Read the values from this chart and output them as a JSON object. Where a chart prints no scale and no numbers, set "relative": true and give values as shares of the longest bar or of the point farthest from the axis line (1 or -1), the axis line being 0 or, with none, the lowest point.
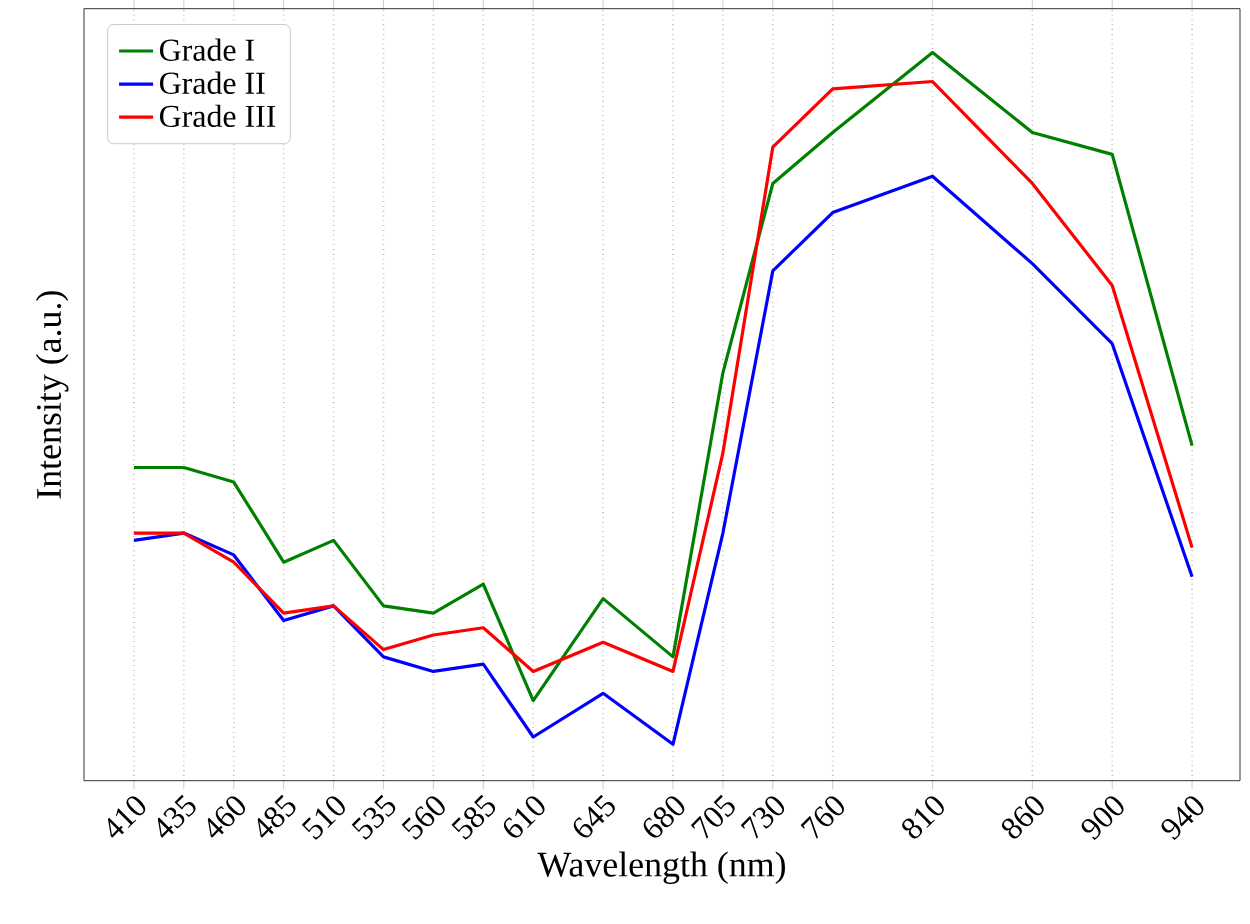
{
  "chart_data": {
    "type": "line",
    "xlabel": "Wavelength (nm)",
    "ylabel": "Intensity (a.u.)",
    "relative": true,
    "x": [
      410,
      435,
      460,
      485,
      510,
      535,
      560,
      585,
      610,
      645,
      680,
      705,
      730,
      760,
      810,
      860,
      900,
      940
    ],
    "xlim": [
      385,
      964
    ],
    "xticks": [
      410,
      435,
      460,
      485,
      510,
      535,
      560,
      585,
      610,
      645,
      680,
      705,
      730,
      760,
      810,
      860,
      900,
      940
    ],
    "grid": "x",
    "legend": "top left",
    "marker": "none",
    "line_style": "solid",
    "series": [
      {
        "name": "Grade I",
        "color": "#008000",
        "values": [
          0.43,
          0.43,
          0.41,
          0.3,
          0.33,
          0.24,
          0.23,
          0.27,
          0.11,
          0.25,
          0.17,
          0.56,
          0.82,
          0.89,
          1.0,
          0.89,
          0.86,
          0.46
        ]
      },
      {
        "name": "Grade II",
        "color": "#0000ff",
        "values": [
          0.33,
          0.34,
          0.31,
          0.22,
          0.24,
          0.17,
          0.15,
          0.16,
          0.06,
          0.12,
          0.05,
          0.34,
          0.7,
          0.78,
          0.83,
          0.71,
          0.6,
          0.28
        ]
      },
      {
        "name": "Grade III",
        "color": "#ff0000",
        "values": [
          0.34,
          0.34,
          0.3,
          0.23,
          0.24,
          0.18,
          0.2,
          0.21,
          0.15,
          0.19,
          0.15,
          0.45,
          0.87,
          0.95,
          0.96,
          0.82,
          0.68,
          0.32
        ]
      }
    ]
  }
}
